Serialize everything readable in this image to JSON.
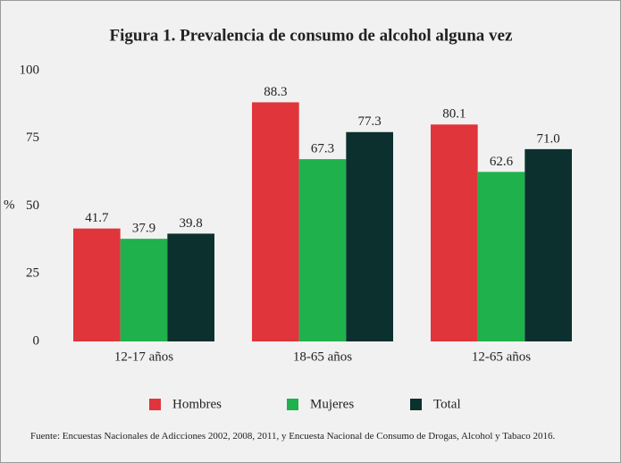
{
  "chart_data": {
    "type": "bar",
    "title": "Figura 1. Prevalencia de consumo de alcohol alguna vez",
    "y_label": "%",
    "categories": [
      "12-17 años",
      "18-65 años",
      "12-65 años"
    ],
    "series": [
      {
        "name": "Hombres",
        "color": "#e0353b",
        "values": [
          41.7,
          88.3,
          80.1
        ],
        "value_labels": [
          "41.7",
          "88.3",
          "80.1"
        ]
      },
      {
        "name": "Mujeres",
        "color": "#1fb14c",
        "values": [
          37.9,
          67.3,
          62.6
        ],
        "value_labels": [
          "37.9",
          "67.3",
          "62.6"
        ]
      },
      {
        "name": "Total",
        "color": "#0c302d",
        "values": [
          39.8,
          77.3,
          71.0
        ],
        "value_labels": [
          "39.8",
          "77.3",
          "71.0"
        ]
      }
    ],
    "ylim": [
      0,
      100
    ],
    "yticks": [
      0,
      25,
      50,
      75,
      100
    ],
    "grid": false,
    "legend": "bottom",
    "source": "Fuente: Encuestas Nacionales de Adicciones 2002, 2008, 2011, y Encuesta Nacional de Consumo de Drogas, Alcohol y Tabaco 2016."
  }
}
